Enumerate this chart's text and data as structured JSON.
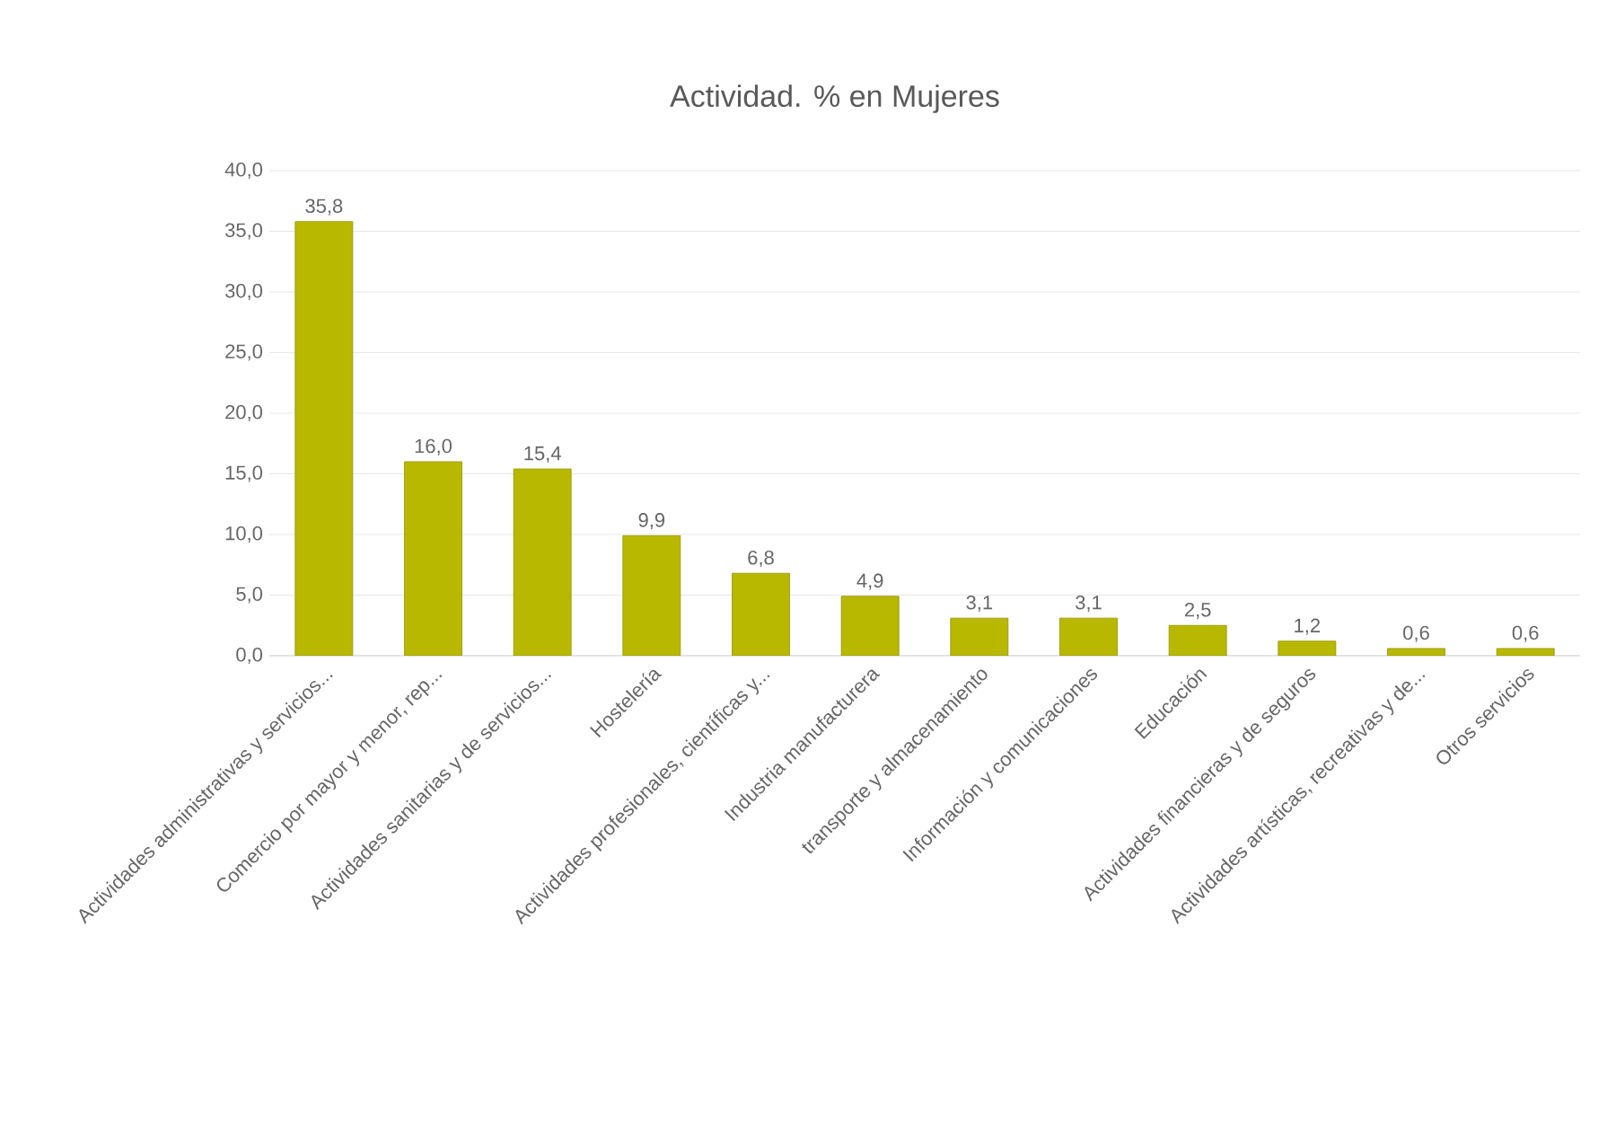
{
  "chart_data": {
    "type": "bar",
    "title": "Actividad. % en Mujeres",
    "categories": [
      "Actividades administrativas y servicios...",
      "Comercio por mayor y menor, rep...",
      "Actividades sanitarias y de servicios...",
      "Hostelería",
      "Actividades profesionales, científicas y...",
      "Industria manufacturera",
      "transporte y almacenamiento",
      "Información y comunicaciones",
      "Educación",
      "Actividades financieras y de seguros",
      "Actividades artísticas, recreativas y de...",
      "Otros servicios"
    ],
    "values": [
      35.8,
      16.0,
      15.4,
      9.9,
      6.8,
      4.9,
      3.1,
      3.1,
      2.5,
      1.2,
      0.6,
      0.6
    ],
    "value_labels": [
      "35,8",
      "16,0",
      "15,4",
      "9,9",
      "6,8",
      "4,9",
      "3,1",
      "3,1",
      "2,5",
      "1,2",
      "0,6",
      "0,6"
    ],
    "color": "#b8b800",
    "ylim": [
      0,
      40
    ],
    "yticks": [
      {
        "value": 0,
        "label": "0,0"
      },
      {
        "value": 5,
        "label": "5,0"
      },
      {
        "value": 10,
        "label": "10,0"
      },
      {
        "value": 15,
        "label": "15,0"
      },
      {
        "value": 20,
        "label": "20,0"
      },
      {
        "value": 25,
        "label": "25,0"
      },
      {
        "value": 30,
        "label": "30,0"
      },
      {
        "value": 35,
        "label": "35,0"
      },
      {
        "value": 40,
        "label": "40,0"
      }
    ],
    "grid": "y"
  }
}
